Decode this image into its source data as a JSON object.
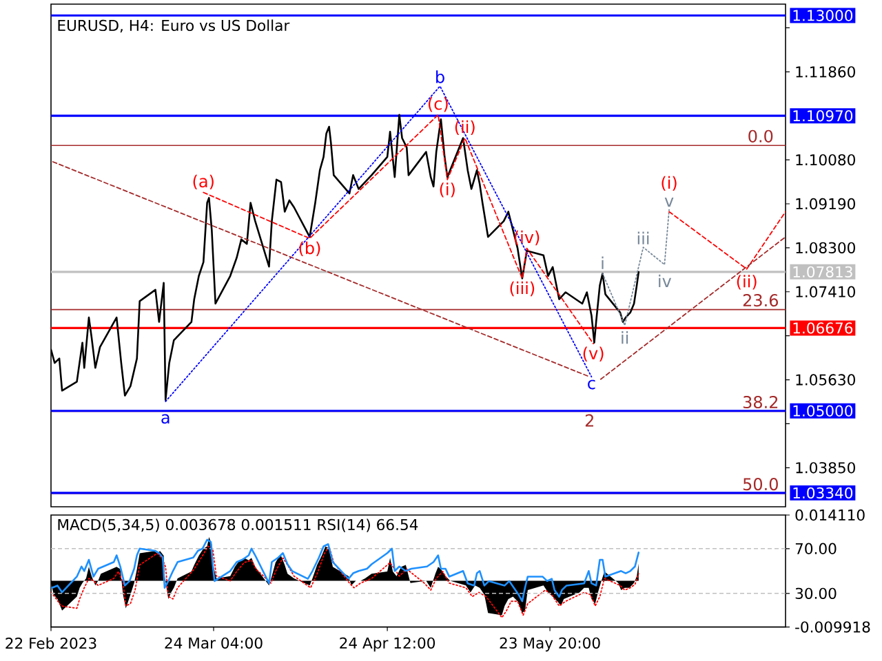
{
  "chart_data": [
    {
      "type": "line",
      "title": "EURUSD, H4: Euro vs US Dollar",
      "tick_labels": "y",
      "xlim": [
        "2023-02-22T20:00",
        "2023-07-05T08:00"
      ],
      "ylim": [
        1.0306,
        1.1323
      ],
      "yticks": [
        {
          "value": 1.1275,
          "label": null
        },
        {
          "value": 1.1186,
          "label": "1.11860"
        },
        {
          "value": 1.1008,
          "label": "1.10080"
        },
        {
          "value": 1.0919,
          "label": "1.09190"
        },
        {
          "value": 1.083,
          "label": "1.08300"
        },
        {
          "value": 1.0741,
          "label": "1.07410"
        },
        {
          "value": 1.0652,
          "label": null
        },
        {
          "value": 1.0563,
          "label": "1.05630"
        },
        {
          "value": 1.0474,
          "label": null
        },
        {
          "value": 1.0385,
          "label": "1.03850"
        }
      ],
      "series": [
        {
          "color": "#000000",
          "x": [
            "2023-02-22T20:00",
            "2023-02-23T12:00",
            "2023-02-24T08:00",
            "2023-02-24T20:00",
            "2023-02-27T12:00",
            "2023-02-28T12:00",
            "2023-02-28T20:00",
            "2023-03-01T16:00",
            "2023-03-02T04:00",
            "2023-03-02T20:00",
            "2023-03-03T16:00",
            "2023-03-06T16:00",
            "2023-03-07T12:00",
            "2023-03-08T04:00",
            "2023-03-09T04:00",
            "2023-03-10T08:00",
            "2023-03-10T20:00",
            "2023-03-13T16:00",
            "2023-03-14T08:00",
            "2023-03-15T04:00",
            "2023-03-15T12:00",
            "2023-03-16T04:00",
            "2023-03-17T00:00",
            "2023-03-20T04:00",
            "2023-03-20T16:00",
            "2023-03-21T12:00",
            "2023-03-22T08:00",
            "2023-03-23T00:00",
            "2023-03-23T08:00",
            "2023-03-23T20:00",
            "2023-03-24T12:00",
            "2023-03-27T04:00",
            "2023-03-28T08:00",
            "2023-03-29T04:00",
            "2023-03-30T04:00",
            "2023-03-30T20:00",
            "2023-03-31T16:00",
            "2023-04-03T04:00",
            "2023-04-03T16:00",
            "2023-04-04T12:00",
            "2023-04-05T08:00",
            "2023-04-06T00:00",
            "2023-04-06T20:00",
            "2023-04-07T16:00",
            "2023-04-10T12:00",
            "2023-04-11T12:00",
            "2023-04-12T08:00",
            "2023-04-13T00:00",
            "2023-04-13T12:00",
            "2023-04-14T00:00",
            "2023-04-14T08:00",
            "2023-04-14T20:00",
            "2023-04-17T16:00",
            "2023-04-18T08:00",
            "2023-04-19T08:00",
            "2023-04-20T12:00",
            "2023-04-21T16:00",
            "2023-04-24T12:00",
            "2023-04-25T00:00",
            "2023-04-25T20:00",
            "2023-04-26T16:00",
            "2023-04-27T04:00",
            "2023-04-28T00:00",
            "2023-04-28T08:00",
            "2023-05-01T12:00",
            "2023-05-02T08:00",
            "2023-05-02T20:00",
            "2023-05-03T08:00",
            "2023-05-04T04:00",
            "2023-05-04T20:00",
            "2023-05-05T08:00",
            "2023-05-08T04:00",
            "2023-05-09T00:00",
            "2023-05-09T16:00",
            "2023-05-10T16:00",
            "2023-05-11T04:00",
            "2023-05-11T16:00",
            "2023-05-12T16:00",
            "2023-05-15T12:00",
            "2023-05-16T08:00",
            "2023-05-17T04:00",
            "2023-05-18T00:00",
            "2023-05-18T20:00",
            "2023-05-19T16:00",
            "2023-05-22T16:00",
            "2023-05-23T12:00",
            "2023-05-24T08:00",
            "2023-05-25T12:00",
            "2023-05-26T16:00",
            "2023-05-29T16:00",
            "2023-05-30T12:00",
            "2023-05-31T08:00",
            "2023-05-31T20:00",
            "2023-06-01T04:00",
            "2023-06-01T20:00",
            "2023-06-02T08:00",
            "2023-06-02T20:00",
            "2023-06-05T12:00",
            "2023-06-06T00:00",
            "2023-06-06T12:00",
            "2023-06-07T08:00",
            "2023-06-08T00:00",
            "2023-06-08T12:00",
            "2023-06-08T20:00"
          ],
          "values": [
            1.0624,
            1.0597,
            1.0606,
            1.0541,
            1.0559,
            1.0638,
            1.0587,
            1.0689,
            1.0648,
            1.0587,
            1.0629,
            1.0689,
            1.0597,
            1.0531,
            1.055,
            1.0606,
            1.0722,
            1.0745,
            1.068,
            1.0759,
            1.0522,
            1.0597,
            1.0643,
            1.068,
            1.0726,
            1.0773,
            1.0801,
            1.0921,
            1.0931,
            1.0866,
            1.0717,
            1.0773,
            1.081,
            1.0847,
            1.0838,
            1.0921,
            1.0884,
            1.0792,
            1.0884,
            1.0968,
            1.0963,
            1.0903,
            1.0926,
            1.0912,
            1.0852,
            1.0921,
            1.0987,
            1.1014,
            1.1061,
            1.1075,
            1.1042,
            1.0977,
            1.094,
            1.0977,
            1.0949,
            1.0963,
            1.0977,
            1.1014,
            1.1065,
            1.0973,
            1.1099,
            1.1052,
            1.1033,
            1.0977,
            1.1024,
            1.0973,
            1.0954,
            1.1024,
            1.109,
            1.1014,
            1.0973,
            1.1052,
            1.0987,
            1.0949,
            1.0987,
            1.0959,
            1.0921,
            1.0852,
            1.0884,
            1.0903,
            1.0866,
            1.0829,
            1.0768,
            1.0824,
            1.0815,
            1.0773,
            1.0791,
            1.0726,
            1.074,
            1.0717,
            1.074,
            1.0693,
            1.0638,
            1.068,
            1.0754,
            1.0778,
            1.0736,
            1.0699,
            1.068,
            1.0689,
            1.0699,
            1.0717,
            1.0754,
            1.0781
          ]
        },
        {
          "color": "#0000ff",
          "line_style": "dotted",
          "x": [
            "2023-03-15T12:00",
            "2023-05-04T00:00",
            "2023-05-31T08:00"
          ],
          "values": [
            1.0519,
            1.1157,
            1.0569
          ]
        },
        {
          "color": "#ff0000",
          "line_style": "dashed",
          "x": [
            "2023-03-22T08:00",
            "2023-04-10T12:00",
            "2023-05-03T16:00",
            "2023-05-05T08:00",
            "2023-05-08T12:00",
            "2023-05-18T20:00",
            "2023-05-19T16:00",
            "2023-05-31T16:00"
          ],
          "values": [
            1.0942,
            1.0849,
            1.1099,
            1.0968,
            1.1052,
            1.0768,
            1.0829,
            1.0636
          ]
        },
        {
          "color": "#a52a2a",
          "line_style": "dashed",
          "x": [
            "2023-02-23T04:00",
            "2023-05-31T00:00"
          ],
          "values": [
            1.1004,
            1.0569
          ]
        },
        {
          "color": "#778899",
          "line_style": "dotted",
          "x": [
            "2023-06-02T08:00",
            "2023-06-06T08:00",
            "2023-06-09T16:00",
            "2023-06-13T12:00",
            "2023-06-14T08:00"
          ],
          "values": [
            1.0778,
            1.0673,
            1.0831,
            1.0796,
            1.0907
          ]
        },
        {
          "color": "#ff0000",
          "line_style": "dashed",
          "x": [
            "2023-06-14T08:00",
            "2023-06-28T08:00",
            "2023-07-05T08:00"
          ],
          "values": [
            1.0903,
            1.0787,
            1.0903
          ]
        },
        {
          "color": "#a52a2a",
          "line_style": "dashed",
          "x": [
            "2023-06-02T00:00",
            "2023-07-05T08:00"
          ],
          "values": [
            1.0564,
            1.0852
          ]
        }
      ],
      "ref_lines": [
        {
          "axis": "y",
          "value": 1.13,
          "label": "1.13000",
          "color": "#0000ff"
        },
        {
          "axis": "y",
          "value": 1.1097,
          "label": "1.10970",
          "color": "#0000ff"
        },
        {
          "axis": "y",
          "value": 1.1037,
          "color": "#a52a2a"
        },
        {
          "axis": "y",
          "value": 1.07813,
          "label": "1.07813",
          "color": "#c0c0c0"
        },
        {
          "axis": "y",
          "value": 1.0705,
          "color": "#a52a2a"
        },
        {
          "axis": "y",
          "value": 1.06676,
          "label": "1.06676",
          "color": "#ff0000"
        },
        {
          "axis": "y",
          "value": 1.0499,
          "color": "#a52a2a"
        },
        {
          "axis": "y",
          "value": 1.05,
          "label": "1.05000",
          "color": "#0000ff"
        },
        {
          "axis": "y",
          "value": 1.0333,
          "color": "#a52a2a"
        },
        {
          "axis": "y",
          "value": 1.0334,
          "label": "1.03340",
          "color": "#0000ff"
        }
      ],
      "annotations": [
        {
          "text": "(a)",
          "x": "2023-03-22T08:00",
          "y": 1.0942
        },
        {
          "text": "(b)",
          "x": "2023-04-10T12:00",
          "y": 1.0849
        },
        {
          "text": "a",
          "x": "2023-03-15T12:00",
          "y": 1.0519
        },
        {
          "text": "b",
          "x": "2023-05-04T00:00",
          "y": 1.1157
        },
        {
          "text": "(c)",
          "x": "2023-05-03T16:00",
          "y": 1.1099
        },
        {
          "text": "(ii)",
          "x": "2023-05-08T12:00",
          "y": 1.1052
        },
        {
          "text": "(i)",
          "x": "2023-05-05T08:00",
          "y": 1.0968
        },
        {
          "text": "(iv)",
          "x": "2023-05-19T16:00",
          "y": 1.0829
        },
        {
          "text": "(iii)",
          "x": "2023-05-18T20:00",
          "y": 1.0768
        },
        {
          "text": "(v)",
          "x": "2023-05-31T16:00",
          "y": 1.0636
        },
        {
          "text": "c",
          "x": "2023-05-31T08:00",
          "y": 1.0569
        },
        {
          "text": "2",
          "x": "2023-05-31T00:00",
          "y": 1.0569
        },
        {
          "text": "i",
          "x": "2023-06-02T08:00",
          "y": 1.0778
        },
        {
          "text": "ii",
          "x": "2023-06-06T08:00",
          "y": 1.0673
        },
        {
          "text": "iii",
          "x": "2023-06-09T16:00",
          "y": 1.0831
        },
        {
          "text": "iv",
          "x": "2023-06-13T12:00",
          "y": 1.0796
        },
        {
          "text": "v",
          "x": "2023-06-14T08:00",
          "y": 1.0907
        },
        {
          "text": "(i)",
          "x": "2023-06-14T08:00",
          "y": 1.0903
        },
        {
          "text": "(ii)",
          "x": "2023-06-28T08:00",
          "y": 1.0787
        },
        {
          "text": "0.0",
          "x": "2023-06-30T20:00",
          "y": 1.1037
        },
        {
          "text": "23.6",
          "x": "2023-06-30T20:00",
          "y": 1.0705
        },
        {
          "text": "38.2",
          "x": "2023-06-30T20:00",
          "y": 1.0499
        },
        {
          "text": "50.0",
          "x": "2023-06-30T20:00",
          "y": 1.0333
        }
      ]
    },
    {
      "type": "line",
      "title": "MACD(5,34,5) 0.003678 0.001511 RSI(14) 66.54",
      "xlim": [
        "2023-02-22T20:00",
        "2023-07-05T08:00"
      ],
      "xticks": [
        {
          "value": "2023-02-22T20:00",
          "label": "22 Feb 2023"
        },
        {
          "value": "2023-03-24T04:00",
          "label": "24 Mar 04:00"
        },
        {
          "value": "2023-04-24T12:00",
          "label": "24 Apr 12:00"
        },
        {
          "value": "2023-05-23T20:00",
          "label": "23 May 20:00"
        }
      ],
      "ylim": [
        -0.009918,
        0.01411
      ],
      "yticks": [
        {
          "value": 0.01411,
          "label": "0.014110"
        },
        {
          "value": -0.009918,
          "label": "-0.009918"
        }
      ],
      "y2lim": [
        0,
        100
      ],
      "y2ticks": [
        {
          "value": 70,
          "label": "70.00"
        },
        {
          "value": 30,
          "label": "30.00"
        }
      ],
      "ref_lines": [
        {
          "axis": "y2",
          "value": 70,
          "color": "#c0c0c0",
          "line_style": "dashed"
        },
        {
          "axis": "y2",
          "value": 30,
          "color": "#c0c0c0",
          "line_style": "dashed"
        }
      ],
      "series": [
        {
          "type": "area",
          "color": "#000000",
          "x": [
            "2023-02-22T20:00",
            "2023-02-23T08:00",
            "2023-02-24T00:00",
            "2023-02-24T20:00",
            "2023-02-27T12:00",
            "2023-02-28T00:00",
            "2023-02-28T12:00",
            "2023-03-01T04:00",
            "2023-03-01T16:00",
            "2023-03-02T04:00",
            "2023-03-02T20:00",
            "2023-03-03T08:00",
            "2023-03-03T20:00",
            "2023-03-06T16:00",
            "2023-03-07T08:00",
            "2023-03-07T20:00",
            "2023-03-08T08:00",
            "2023-03-09T04:00",
            "2023-03-09T20:00",
            "2023-03-10T08:00",
            "2023-03-10T20:00",
            "2023-03-13T12:00",
            "2023-03-14T00:00",
            "2023-03-14T12:00",
            "2023-03-15T04:00",
            "2023-03-15T08:00",
            "2023-03-16T00:00",
            "2023-03-16T12:00",
            "2023-03-17T00:00",
            "2023-03-17T16:00",
            "2023-03-20T04:00",
            "2023-03-20T16:00",
            "2023-03-21T12:00",
            "2023-03-22T08:00",
            "2023-03-23T00:00",
            "2023-03-23T08:00",
            "2023-03-23T20:00",
            "2023-03-24T04:00",
            "2023-03-24T16:00",
            "2023-03-27T04:00",
            "2023-03-28T00:00",
            "2023-03-28T20:00",
            "2023-03-29T16:00",
            "2023-03-30T12:00",
            "2023-03-31T00:00",
            "2023-03-31T16:00",
            "2023-04-03T04:00",
            "2023-04-03T16:00",
            "2023-04-04T08:00",
            "2023-04-04T20:00",
            "2023-04-05T08:00",
            "2023-04-06T00:00",
            "2023-04-06T12:00",
            "2023-04-07T16:00",
            "2023-04-10T12:00",
            "2023-04-11T00:00",
            "2023-04-11T20:00",
            "2023-04-12T16:00",
            "2023-04-13T08:00",
            "2023-04-14T00:00",
            "2023-04-14T16:00",
            "2023-04-17T12:00",
            "2023-04-18T00:00",
            "2023-04-18T20:00",
            "2023-04-19T16:00",
            "2023-04-20T12:00",
            "2023-04-21T16:00",
            "2023-04-24T12:00",
            "2023-04-25T00:00",
            "2023-04-25T12:00",
            "2023-04-26T04:00",
            "2023-04-27T00:00",
            "2023-04-27T20:00",
            "2023-04-28T16:00",
            "2023-05-01T12:00",
            "2023-05-02T08:00",
            "2023-05-03T04:00",
            "2023-05-03T16:00",
            "2023-05-04T04:00",
            "2023-05-05T00:00",
            "2023-05-05T20:00",
            "2023-05-08T16:00",
            "2023-05-09T12:00",
            "2023-05-10T08:00",
            "2023-05-11T04:00",
            "2023-05-12T00:00",
            "2023-05-12T16:00",
            "2023-05-15T04:00",
            "2023-05-15T16:00",
            "2023-05-16T08:00",
            "2023-05-17T04:00",
            "2023-05-18T00:00",
            "2023-05-18T20:00",
            "2023-05-19T08:00",
            "2023-05-19T20:00",
            "2023-05-22T16:00",
            "2023-05-23T12:00",
            "2023-05-24T08:00",
            "2023-05-25T04:00",
            "2023-05-25T20:00",
            "2023-05-26T08:00",
            "2023-05-29T04:00",
            "2023-05-30T00:00",
            "2023-05-30T20:00",
            "2023-05-31T08:00",
            "2023-06-01T00:00",
            "2023-06-01T12:00",
            "2023-06-02T00:00",
            "2023-06-02T16:00",
            "2023-06-05T04:00",
            "2023-06-05T16:00",
            "2023-06-06T08:00",
            "2023-06-07T04:00",
            "2023-06-08T00:00",
            "2023-06-08T12:00",
            "2023-06-08T20:00"
          ],
          "values": [
            -0.0005,
            -0.003,
            -0.0039,
            -0.0064,
            -0.0034,
            -0.0015,
            -0.0005,
            0.0005,
            0.003,
            0.001,
            -0.001,
            0.0,
            0.0015,
            0.003,
            0.0025,
            -0.003,
            -0.0059,
            -0.003,
            -0.0005,
            0.0025,
            0.0059,
            0.0064,
            0.0059,
            0.0064,
            0.0054,
            0.001,
            -0.0039,
            -0.0025,
            -0.0015,
            0.0005,
            0.002,
            0.0034,
            0.0054,
            0.0069,
            0.0074,
            0.0094,
            0.0079,
            0.003,
            0.0005,
            0.001,
            0.003,
            0.0044,
            0.0049,
            0.0044,
            0.0049,
            0.003,
            -0.001,
            0.001,
            0.0039,
            0.0049,
            0.0054,
            0.0034,
            0.0015,
            0.0005,
            -0.001,
            0.0005,
            0.0034,
            0.0054,
            0.0074,
            0.0069,
            0.003,
            0.001,
            -0.001,
            0.0,
            0.0,
            0.0005,
            0.0015,
            0.002,
            0.0049,
            0.002,
            0.001,
            0.003,
            0.0034,
            -0.0005,
            0.0,
            -0.0015,
            0.0015,
            0.003,
            0.0025,
            0.001,
            0.0,
            -0.001,
            -0.0025,
            -0.001,
            -0.0015,
            -0.003,
            -0.0069,
            -0.0074,
            -0.0054,
            -0.0039,
            -0.0034,
            -0.0044,
            -0.0069,
            -0.0064,
            -0.002,
            -0.001,
            -0.0025,
            -0.0034,
            -0.0044,
            -0.0054,
            -0.0039,
            -0.0025,
            -0.0015,
            -0.0015,
            -0.0039,
            -0.0049,
            -0.0025,
            -0.0005,
            0.002,
            -0.0005,
            -0.002,
            -0.0015,
            -0.0015,
            -0.0005,
            0.001,
            0.0037
          ]
        },
        {
          "type": "line",
          "color": "#ff0000",
          "line_style": "dotted",
          "x": [
            "2023-02-22T20:00",
            "2023-02-23T12:00",
            "2023-02-24T16:00",
            "2023-02-27T12:00",
            "2023-02-28T00:00",
            "2023-02-28T20:00",
            "2023-03-01T16:00",
            "2023-03-02T12:00",
            "2023-03-03T08:00",
            "2023-03-06T04:00",
            "2023-03-07T00:00",
            "2023-03-07T20:00",
            "2023-03-08T08:00",
            "2023-03-09T04:00",
            "2023-03-10T00:00",
            "2023-03-10T20:00",
            "2023-03-14T00:00",
            "2023-03-14T20:00",
            "2023-03-15T12:00",
            "2023-03-16T00:00",
            "2023-03-16T20:00",
            "2023-03-17T16:00",
            "2023-03-20T16:00",
            "2023-03-22T04:00",
            "2023-03-23T04:00",
            "2023-03-24T00:00",
            "2023-03-24T16:00",
            "2023-03-27T04:00",
            "2023-03-28T08:00",
            "2023-03-29T16:00",
            "2023-03-31T00:00",
            "2023-03-31T20:00",
            "2023-04-03T12:00",
            "2023-04-04T08:00",
            "2023-04-05T16:00",
            "2023-04-06T12:00",
            "2023-04-07T16:00",
            "2023-04-10T16:00",
            "2023-04-11T20:00",
            "2023-04-13T04:00",
            "2023-04-14T00:00",
            "2023-04-14T20:00",
            "2023-04-17T16:00",
            "2023-04-18T12:00",
            "2023-04-19T16:00",
            "2023-04-21T16:00",
            "2023-04-25T00:00",
            "2023-04-25T20:00",
            "2023-04-26T16:00",
            "2023-04-28T00:00",
            "2023-05-01T04:00",
            "2023-05-02T08:00",
            "2023-05-03T08:00",
            "2023-05-04T12:00",
            "2023-05-05T16:00",
            "2023-05-08T16:00",
            "2023-05-09T20:00",
            "2023-05-11T00:00",
            "2023-05-12T08:00",
            "2023-05-15T04:00",
            "2023-05-16T00:00",
            "2023-05-16T20:00",
            "2023-05-18T00:00",
            "2023-05-19T00:00",
            "2023-05-19T20:00",
            "2023-05-23T00:00",
            "2023-05-24T04:00",
            "2023-05-25T12:00",
            "2023-05-26T16:00",
            "2023-05-30T00:00",
            "2023-05-31T04:00",
            "2023-06-01T00:00",
            "2023-06-01T20:00",
            "2023-06-02T16:00",
            "2023-06-05T12:00",
            "2023-06-06T08:00",
            "2023-06-07T08:00",
            "2023-06-08T04:00",
            "2023-06-08T20:00"
          ],
          "values": [
            -0.0025,
            -0.0034,
            -0.0054,
            -0.0059,
            -0.0039,
            -0.0015,
            0.0005,
            0.0,
            -0.001,
            0.0005,
            0.002,
            -0.0005,
            -0.0054,
            -0.0049,
            -0.002,
            0.0034,
            0.0059,
            0.0049,
            0.003,
            -0.0034,
            -0.0039,
            -0.0015,
            0.0025,
            0.0054,
            0.0074,
            0.0069,
            0.001,
            0.0,
            0.002,
            0.0039,
            0.0044,
            0.0025,
            -0.0005,
            0.002,
            0.0049,
            0.0034,
            0.001,
            -0.0015,
            0.0015,
            0.0059,
            0.0074,
            0.0039,
            -0.0005,
            -0.0015,
            -0.0005,
            0.0005,
            0.0039,
            0.0025,
            0.001,
            0.0025,
            -0.0005,
            -0.002,
            0.0005,
            0.002,
            -0.0005,
            -0.0015,
            -0.0034,
            -0.0025,
            -0.0034,
            -0.0079,
            -0.0064,
            -0.0044,
            -0.0044,
            -0.0074,
            -0.0049,
            -0.002,
            -0.003,
            -0.0054,
            -0.0044,
            -0.0025,
            -0.003,
            -0.0054,
            -0.0034,
            0.0005,
            -0.001,
            -0.002,
            -0.0015,
            -0.0008,
            0.0015
          ]
        },
        {
          "type": "line",
          "color": "#1e90ff",
          "axis": "y2",
          "x": [
            "2023-02-23T00:00",
            "2023-02-24T00:00",
            "2023-02-24T20:00",
            "2023-02-27T12:00",
            "2023-02-28T08:00",
            "2023-02-28T20:00",
            "2023-03-01T16:00",
            "2023-03-02T00:00",
            "2023-03-02T12:00",
            "2023-03-03T08:00",
            "2023-03-06T04:00",
            "2023-03-06T16:00",
            "2023-03-07T08:00",
            "2023-03-08T04:00",
            "2023-03-09T00:00",
            "2023-03-09T20:00",
            "2023-03-10T08:00",
            "2023-03-10T20:00",
            "2023-03-13T16:00",
            "2023-03-14T08:00",
            "2023-03-15T00:00",
            "2023-03-15T08:00",
            "2023-03-16T00:00",
            "2023-03-16T20:00",
            "2023-03-17T16:00",
            "2023-03-20T12:00",
            "2023-03-21T08:00",
            "2023-03-22T04:00",
            "2023-03-23T00:00",
            "2023-03-23T16:00",
            "2023-03-24T00:00",
            "2023-03-24T08:00",
            "2023-03-27T04:00",
            "2023-03-28T08:00",
            "2023-03-29T08:00",
            "2023-03-30T12:00",
            "2023-03-31T00:00",
            "2023-03-31T16:00",
            "2023-04-03T04:00",
            "2023-04-03T16:00",
            "2023-04-04T20:00",
            "2023-04-05T16:00",
            "2023-04-06T12:00",
            "2023-04-07T08:00",
            "2023-04-10T04:00",
            "2023-04-11T00:00",
            "2023-04-12T04:00",
            "2023-04-13T00:00",
            "2023-04-13T20:00",
            "2023-04-14T16:00",
            "2023-04-17T12:00",
            "2023-04-18T08:00",
            "2023-04-19T08:00",
            "2023-04-20T20:00",
            "2023-04-21T16:00",
            "2023-04-24T12:00",
            "2023-04-25T08:00",
            "2023-04-25T20:00",
            "2023-04-26T16:00",
            "2023-04-27T20:00",
            "2023-04-28T20:00",
            "2023-05-01T16:00",
            "2023-05-02T20:00",
            "2023-05-03T16:00",
            "2023-05-04T04:00",
            "2023-05-05T00:00",
            "2023-05-05T16:00",
            "2023-05-08T04:00",
            "2023-05-09T00:00",
            "2023-05-10T04:00",
            "2023-05-10T16:00",
            "2023-05-11T04:00",
            "2023-05-12T00:00",
            "2023-05-12T20:00",
            "2023-05-15T16:00",
            "2023-05-16T12:00",
            "2023-05-17T08:00",
            "2023-05-18T04:00",
            "2023-05-18T20:00",
            "2023-05-19T08:00",
            "2023-05-19T20:00",
            "2023-05-22T12:00",
            "2023-05-23T08:00",
            "2023-05-24T04:00",
            "2023-05-24T16:00",
            "2023-05-25T12:00",
            "2023-05-26T00:00",
            "2023-05-26T20:00",
            "2023-05-30T00:00",
            "2023-05-30T20:00",
            "2023-05-31T08:00",
            "2023-06-01T04:00",
            "2023-06-01T20:00",
            "2023-06-02T08:00",
            "2023-06-02T20:00",
            "2023-06-05T16:00",
            "2023-06-06T12:00",
            "2023-06-07T08:00",
            "2023-06-08T04:00",
            "2023-06-08T20:00"
          ],
          "values": [
            35,
            37,
            31,
            45,
            54,
            50,
            60,
            54,
            45,
            52,
            58,
            64,
            54,
            37,
            41,
            52,
            64,
            70,
            68,
            66,
            62,
            35,
            41,
            50,
            58,
            62,
            68,
            70,
            78,
            76,
            56,
            41,
            50,
            58,
            60,
            64,
            70,
            64,
            39,
            58,
            62,
            66,
            56,
            50,
            43,
            50,
            62,
            72,
            74,
            58,
            43,
            48,
            50,
            52,
            56,
            66,
            70,
            50,
            54,
            50,
            52,
            54,
            58,
            64,
            52,
            52,
            45,
            50,
            39,
            37,
            48,
            50,
            37,
            41,
            37,
            41,
            35,
            29,
            23,
            35,
            45,
            45,
            41,
            43,
            33,
            27,
            33,
            37,
            39,
            50,
            39,
            37,
            60,
            60,
            45,
            50,
            48,
            50,
            54,
            66.54
          ]
        }
      ]
    }
  ]
}
